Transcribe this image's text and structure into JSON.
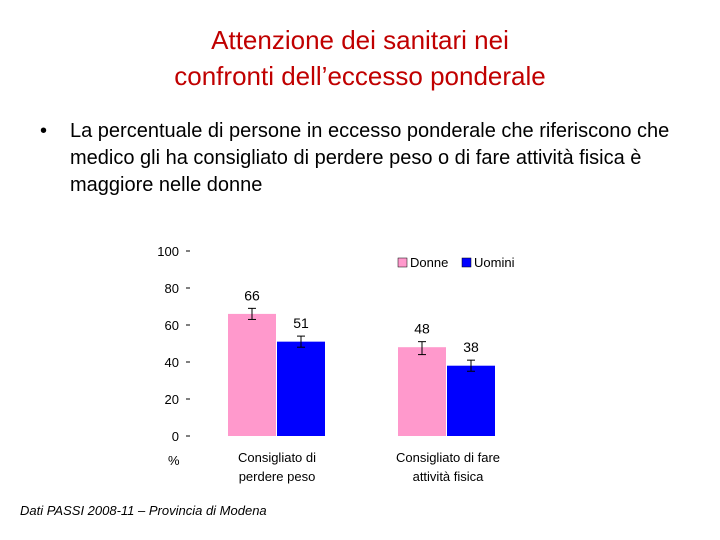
{
  "slide": {
    "title_line1": "Attenzione dei sanitari nei",
    "title_line2": "confronti dell’eccesso ponderale",
    "bullet_symbol": "•",
    "bullet_text": "La percentuale di persone in eccesso ponderale che riferiscono che medico gli ha consigliato di perdere peso o di fare attività fisica è maggiore nelle donne",
    "footer": "Dati PASSI 2008-11 – Provincia di Modena"
  },
  "chart_data": {
    "type": "bar",
    "title": "",
    "ylabel": "%",
    "ylim": [
      0,
      100
    ],
    "yticks": [
      0,
      20,
      40,
      60,
      80,
      100
    ],
    "categories": [
      [
        "Consigliato di",
        "perdere peso"
      ],
      [
        "Consigliato di fare",
        "attività fisica"
      ]
    ],
    "series": [
      {
        "name": "Donne",
        "color": "#ff99cc",
        "values": [
          66,
          48
        ],
        "ci_low": [
          63,
          44
        ],
        "ci_high": [
          69,
          51
        ]
      },
      {
        "name": "Uomini",
        "color": "#0000ff",
        "values": [
          51,
          38
        ],
        "ci_low": [
          48,
          35
        ],
        "ci_high": [
          54,
          41
        ]
      }
    ],
    "legend_position": "top-right",
    "grid": false
  }
}
